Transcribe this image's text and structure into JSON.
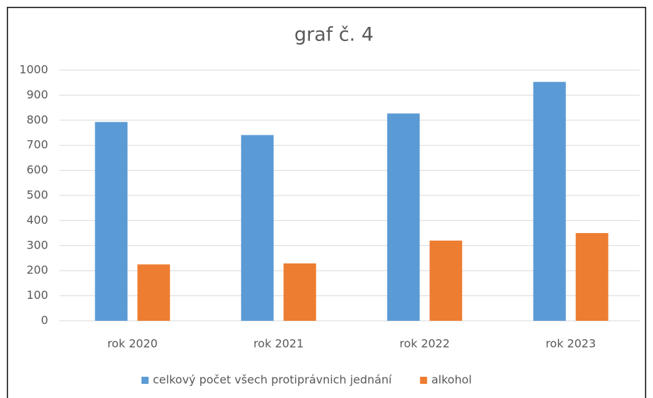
{
  "chart_data": {
    "type": "bar",
    "title": "graf č. 4",
    "categories": [
      "rok 2020",
      "rok 2021",
      "rok 2022",
      "rok 2023"
    ],
    "series": [
      {
        "name": "celkový počet všech protiprávnich jednání",
        "color": "#5b9bd5",
        "values": [
          793,
          741,
          827,
          953
        ]
      },
      {
        "name": "alkohol",
        "color": "#ed7d31",
        "values": [
          225,
          229,
          320,
          350
        ]
      }
    ],
    "ylim": [
      0,
      1000
    ],
    "yticks": [
      0,
      100,
      200,
      300,
      400,
      500,
      600,
      700,
      800,
      900,
      1000
    ],
    "grid": true,
    "legend": "bottom"
  }
}
